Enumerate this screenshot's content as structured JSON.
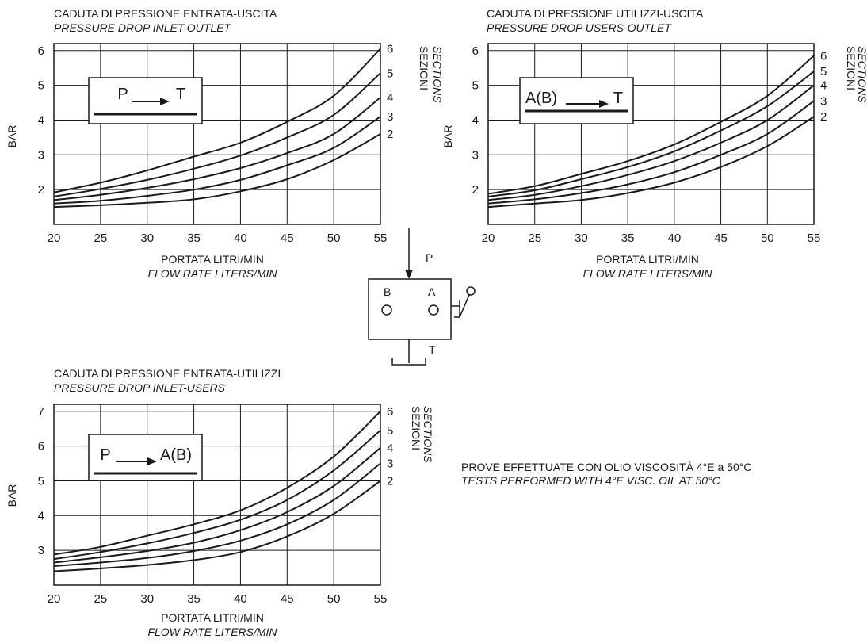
{
  "charts": [
    {
      "title_it": "CADUTA DI PRESSIONE ENTRATA-USCITA",
      "title_en": "PRESSURE DROP INLET-OUTLET",
      "ylabel": "BAR",
      "xlabel_it": "PORTATA LITRI/MIN",
      "xlabel_en": "FLOW RATE LITERS/MIN",
      "sections_it": "SEZIONI",
      "sections_en": "SECTIONS",
      "box_from": "P",
      "box_to": "T"
    },
    {
      "title_it": "CADUTA DI PRESSIONE UTILIZZI-USCITA",
      "title_en": "PRESSURE DROP USERS-OUTLET",
      "ylabel": "BAR",
      "xlabel_it": "PORTATA LITRI/MIN",
      "xlabel_en": "FLOW RATE LITERS/MIN",
      "sections_it": "SEZIONI",
      "sections_en": "SECTIONS",
      "box_from": "A(B)",
      "box_to": "T"
    },
    {
      "title_it": "CADUTA DI PRESSIONE ENTRATA-UTILIZZI",
      "title_en": "PRESSURE DROP INLET-USERS",
      "ylabel": "BAR",
      "xlabel_it": "PORTATA LITRI/MIN",
      "xlabel_en": "FLOW RATE LITERS/MIN",
      "sections_it": "SEZIONI",
      "sections_en": "SECTIONS",
      "box_from": "P",
      "box_to": "A(B)"
    }
  ],
  "valve": {
    "port_p": "P",
    "port_a": "A",
    "port_b": "B",
    "port_t": "T"
  },
  "note": {
    "it": "PROVE EFFETTUATE CON OLIO VISCOSITÀ 4°E a 50°C",
    "en": "TESTS PERFORMED WITH 4°E VISC. OIL  AT 50°C"
  },
  "chart_data": [
    {
      "type": "line",
      "title": "CADUTA DI PRESSIONE ENTRATA-USCITA",
      "subtitle": "PRESSURE DROP INLET-OUTLET",
      "xlabel": "PORTATA LITRI/MIN",
      "ylabel": "BAR",
      "x_ticks": [
        20,
        25,
        30,
        35,
        40,
        45,
        50,
        55
      ],
      "y_ticks": [
        2,
        3,
        4,
        5,
        6
      ],
      "xlim": [
        20,
        55
      ],
      "ylim": [
        1,
        6.2
      ],
      "grid": true,
      "x": [
        20,
        25,
        30,
        35,
        40,
        45,
        50,
        55
      ],
      "series": [
        {
          "name": "2",
          "values": [
            1.5,
            1.55,
            1.62,
            1.72,
            1.95,
            2.3,
            2.85,
            3.6
          ]
        },
        {
          "name": "3",
          "values": [
            1.6,
            1.68,
            1.82,
            2.0,
            2.28,
            2.7,
            3.2,
            4.1
          ]
        },
        {
          "name": "4",
          "values": [
            1.7,
            1.85,
            2.05,
            2.3,
            2.62,
            3.05,
            3.6,
            4.65
          ]
        },
        {
          "name": "5",
          "values": [
            1.8,
            2.02,
            2.28,
            2.6,
            2.98,
            3.5,
            4.15,
            5.35
          ]
        },
        {
          "name": "6",
          "values": [
            1.92,
            2.2,
            2.55,
            2.95,
            3.35,
            3.95,
            4.7,
            6.05
          ]
        }
      ]
    },
    {
      "type": "line",
      "title": "CADUTA DI PRESSIONE UTILIZZI-USCITA",
      "subtitle": "PRESSURE DROP USERS-OUTLET",
      "xlabel": "PORTATA LITRI/MIN",
      "ylabel": "BAR",
      "x_ticks": [
        20,
        25,
        30,
        35,
        40,
        45,
        50,
        55
      ],
      "y_ticks": [
        2,
        3,
        4,
        5,
        6
      ],
      "xlim": [
        20,
        55
      ],
      "ylim": [
        1,
        6.2
      ],
      "grid": true,
      "x": [
        20,
        25,
        30,
        35,
        40,
        45,
        50,
        55
      ],
      "series": [
        {
          "name": "2",
          "values": [
            1.5,
            1.6,
            1.7,
            1.9,
            2.2,
            2.65,
            3.25,
            4.1
          ]
        },
        {
          "name": "3",
          "values": [
            1.6,
            1.72,
            1.9,
            2.15,
            2.5,
            3.0,
            3.6,
            4.55
          ]
        },
        {
          "name": "4",
          "values": [
            1.7,
            1.85,
            2.1,
            2.42,
            2.82,
            3.35,
            4.0,
            5.0
          ]
        },
        {
          "name": "5",
          "values": [
            1.8,
            1.98,
            2.3,
            2.65,
            3.1,
            3.7,
            4.4,
            5.4
          ]
        },
        {
          "name": "6",
          "values": [
            1.88,
            2.1,
            2.45,
            2.82,
            3.3,
            3.95,
            4.7,
            5.85
          ]
        }
      ]
    },
    {
      "type": "line",
      "title": "CADUTA DI PRESSIONE ENTRATA-UTILIZZI",
      "subtitle": "PRESSURE DROP INLET-USERS",
      "xlabel": "PORTATA LITRI/MIN",
      "ylabel": "BAR",
      "x_ticks": [
        20,
        25,
        30,
        35,
        40,
        45,
        50,
        55
      ],
      "y_ticks": [
        3,
        4,
        5,
        6,
        7
      ],
      "xlim": [
        20,
        55
      ],
      "ylim": [
        2,
        7.2
      ],
      "grid": true,
      "x": [
        20,
        25,
        30,
        35,
        40,
        45,
        50,
        55
      ],
      "series": [
        {
          "name": "2",
          "values": [
            2.4,
            2.48,
            2.58,
            2.72,
            2.95,
            3.4,
            4.05,
            5.0
          ]
        },
        {
          "name": "3",
          "values": [
            2.55,
            2.65,
            2.78,
            2.98,
            3.28,
            3.75,
            4.45,
            5.5
          ]
        },
        {
          "name": "4",
          "values": [
            2.65,
            2.8,
            2.98,
            3.22,
            3.58,
            4.1,
            4.85,
            5.95
          ]
        },
        {
          "name": "5",
          "values": [
            2.75,
            2.95,
            3.2,
            3.5,
            3.88,
            4.45,
            5.3,
            6.45
          ]
        },
        {
          "name": "6",
          "values": [
            2.88,
            3.1,
            3.42,
            3.75,
            4.15,
            4.8,
            5.7,
            7.0
          ]
        }
      ]
    }
  ]
}
